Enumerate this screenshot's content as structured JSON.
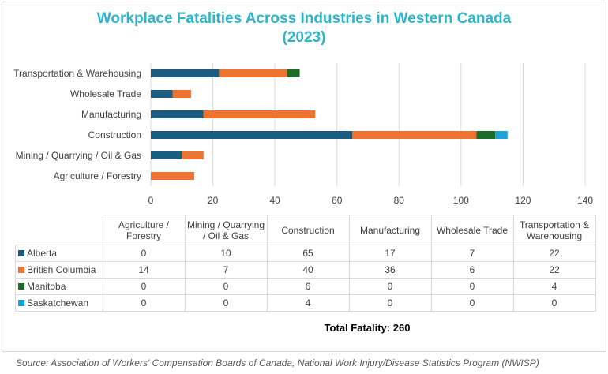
{
  "chart_data": {
    "type": "bar",
    "orientation": "horizontal",
    "stacked": true,
    "title": "Workplace Fatalities Across Industries in Western Canada (2023)",
    "title_lines": [
      "Workplace Fatalities Across Industries in Western Canada",
      "(2023)"
    ],
    "categories": [
      "Agriculture / Forestry",
      "Mining / Quarrying / Oil & Gas",
      "Construction",
      "Manufacturing",
      "Wholesale Trade",
      "Transportation & Warehousing"
    ],
    "table_headers": [
      "Agriculture / Forestry",
      "Mining / Quarrying / Oil & Gas",
      "Construction",
      "Manufacturing",
      "Wholesale Trade",
      "Transportation & Warehousing"
    ],
    "series": [
      {
        "name": "Alberta",
        "color": "#1b5d80",
        "values": [
          0,
          10,
          65,
          17,
          7,
          22
        ]
      },
      {
        "name": "British Columbia",
        "color": "#ed7332",
        "values": [
          14,
          7,
          40,
          36,
          6,
          22
        ]
      },
      {
        "name": "Manitoba",
        "color": "#1f6b2a",
        "values": [
          0,
          0,
          6,
          0,
          0,
          4
        ]
      },
      {
        "name": "Saskatchewan",
        "color": "#1fa1d9",
        "values": [
          0,
          0,
          4,
          0,
          0,
          0
        ]
      }
    ],
    "xlim": [
      0,
      140
    ],
    "xticks": [
      0,
      20,
      40,
      60,
      80,
      100,
      120,
      140
    ],
    "grid": true,
    "legend": "data-table"
  },
  "total_label": "Total Fatality: 260",
  "source": "Source: Association of Workers' Compensation Boards of Canada, National Work Injury/Disease Statistics Program (NWISP)"
}
